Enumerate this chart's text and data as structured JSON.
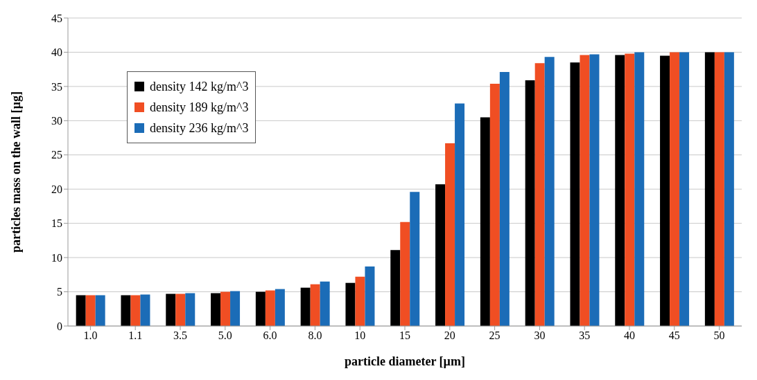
{
  "chart_data": {
    "type": "bar",
    "xlabel": "particle diameter [µm]",
    "ylabel": "particles mass on the wall [µg]",
    "categories": [
      "1.0",
      "1.1",
      "3.5",
      "5.0",
      "6.0",
      "8.0",
      "10",
      "15",
      "20",
      "25",
      "30",
      "35",
      "40",
      "45",
      "50"
    ],
    "series": [
      {
        "name": "density 142 kg/m^3",
        "color": "#000000",
        "values": [
          4.5,
          4.5,
          4.7,
          4.8,
          5.0,
          5.6,
          6.3,
          11.1,
          20.7,
          30.5,
          35.9,
          38.5,
          39.6,
          39.5,
          40
        ]
      },
      {
        "name": "density 189 kg/m^3",
        "color": "#f04e23",
        "values": [
          4.5,
          4.5,
          4.7,
          5.0,
          5.2,
          6.1,
          7.2,
          15.2,
          26.7,
          35.4,
          38.4,
          39.6,
          39.8,
          40,
          40
        ]
      },
      {
        "name": "density 236 kg/m^3",
        "color": "#1b6cb7",
        "values": [
          4.5,
          4.6,
          4.8,
          5.1,
          5.4,
          6.5,
          8.7,
          19.6,
          32.5,
          37.1,
          39.3,
          39.7,
          40,
          40,
          40
        ]
      }
    ],
    "ylim": [
      0,
      45
    ],
    "yticks": [
      0,
      5,
      10,
      15,
      20,
      25,
      30,
      35,
      40,
      45
    ],
    "grid": "y",
    "legend": "top left"
  }
}
